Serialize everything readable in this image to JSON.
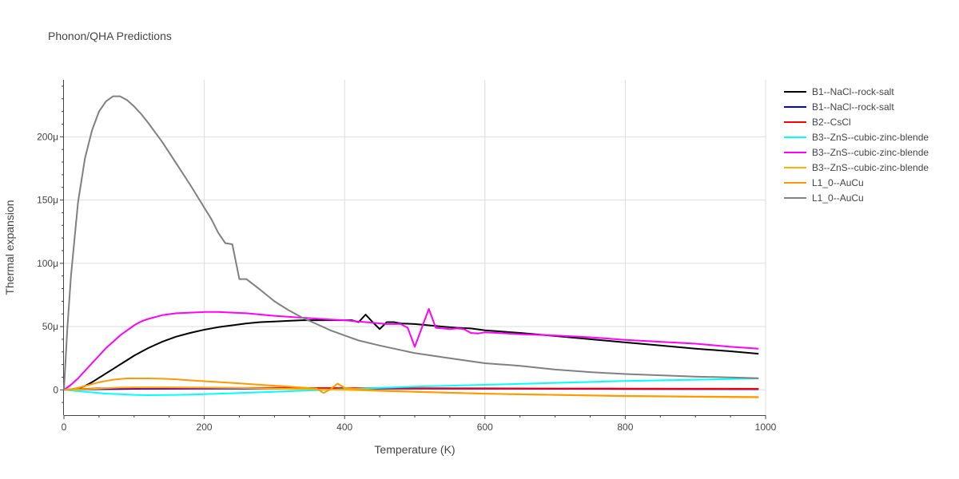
{
  "chart_data": {
    "type": "line",
    "title": "Phonon/QHA Predictions",
    "xlabel": "Temperature (K)",
    "ylabel": "Thermal expansion",
    "xlim": [
      0,
      1000
    ],
    "ylim": [
      -20,
      245
    ],
    "x_ticks": [
      {
        "value": 0,
        "label": "0"
      },
      {
        "value": 200,
        "label": "200"
      },
      {
        "value": 400,
        "label": "400"
      },
      {
        "value": 600,
        "label": "600"
      },
      {
        "value": 800,
        "label": "800"
      },
      {
        "value": 1000,
        "label": "1000"
      }
    ],
    "y_ticks": [
      {
        "value": 0,
        "label": "0"
      },
      {
        "value": 50,
        "label": "50μ"
      },
      {
        "value": 100,
        "label": "100μ"
      },
      {
        "value": 150,
        "label": "150μ"
      },
      {
        "value": 200,
        "label": "200μ"
      }
    ],
    "grid": true,
    "legend_position": "right",
    "series": [
      {
        "name": "B1--NaCl--rock-salt",
        "color": "#000000",
        "x": [
          0,
          10,
          20,
          30,
          40,
          50,
          60,
          70,
          80,
          90,
          100,
          110,
          120,
          140,
          160,
          180,
          200,
          220,
          240,
          260,
          280,
          300,
          320,
          340,
          360,
          380,
          400,
          410,
          420,
          430,
          440,
          450,
          460,
          470,
          480,
          500,
          520,
          540,
          560,
          580,
          600,
          650,
          700,
          750,
          800,
          850,
          900,
          950,
          990
        ],
        "y": [
          0,
          0.2,
          1,
          3,
          6,
          9.5,
          13,
          16.5,
          20,
          23.5,
          27,
          30,
          33,
          38,
          42,
          45,
          47.5,
          49.5,
          51,
          52.5,
          53.5,
          54,
          54.5,
          55,
          55,
          55,
          55,
          55,
          53.5,
          59.5,
          53.5,
          48,
          53.5,
          53.5,
          52.5,
          52,
          51,
          50,
          49,
          48.5,
          47,
          45,
          42.5,
          40,
          37.5,
          35,
          32.5,
          30.5,
          28.5
        ]
      },
      {
        "name": "B1--NaCl--rock-salt",
        "color": "#0000ff",
        "x": [
          0,
          20,
          50,
          100,
          200,
          300,
          400,
          500,
          600,
          700,
          800,
          900,
          990
        ],
        "y": [
          0,
          0.2,
          0.5,
          0.8,
          1,
          1,
          1,
          1,
          0.9,
          0.8,
          0.7,
          0.6,
          0.5
        ]
      },
      {
        "name": "B2--CsCl",
        "color": "#ff0000",
        "x": [
          0,
          20,
          50,
          100,
          200,
          300,
          400,
          500,
          600,
          700,
          800,
          900,
          990
        ],
        "y": [
          0,
          0.5,
          1.2,
          1.5,
          1.5,
          1.5,
          1.4,
          1.3,
          1.2,
          1.1,
          1,
          0.9,
          0.8
        ]
      },
      {
        "name": "B3--ZnS--cubic-zinc-blende",
        "color": "#00ffff",
        "x": [
          0,
          20,
          40,
          60,
          80,
          100,
          120,
          160,
          200,
          250,
          300,
          350,
          400,
          450,
          500,
          600,
          700,
          800,
          900,
          990
        ],
        "y": [
          0,
          -1,
          -2,
          -3,
          -3.5,
          -4,
          -4.2,
          -4,
          -3.5,
          -2.5,
          -1.5,
          -0.5,
          0.5,
          1.5,
          2.5,
          4,
          5.5,
          7,
          8,
          9
        ]
      },
      {
        "name": "B3--ZnS--cubic-zinc-blende",
        "color": "#ff00ff",
        "x": [
          0,
          10,
          20,
          30,
          40,
          50,
          60,
          70,
          80,
          90,
          100,
          110,
          120,
          140,
          160,
          180,
          200,
          220,
          240,
          260,
          280,
          300,
          340,
          380,
          400,
          420,
          440,
          460,
          480,
          490,
          500,
          520,
          530,
          540,
          550,
          560,
          570,
          580,
          590,
          600,
          650,
          700,
          750,
          800,
          850,
          900,
          950,
          990
        ],
        "y": [
          0,
          4,
          9,
          15,
          21,
          27,
          33,
          38,
          43,
          47,
          51,
          54,
          56,
          59,
          60.5,
          61,
          61.5,
          61.5,
          61,
          60.5,
          59.5,
          58.5,
          57,
          55.5,
          55,
          54,
          53,
          52,
          52,
          49,
          34,
          64,
          49,
          48.5,
          48,
          48.5,
          48,
          45,
          44.5,
          45.5,
          44,
          43,
          41.5,
          39.5,
          38,
          36.5,
          34,
          32.5
        ]
      },
      {
        "name": "B3--ZnS--cubic-zinc-blende",
        "color": "#ffb000",
        "x": [
          0,
          20,
          50,
          80,
          100,
          150,
          200,
          250,
          300,
          350,
          400,
          450,
          500,
          600,
          700,
          800,
          900,
          990
        ],
        "y": [
          0,
          0.2,
          1,
          1.8,
          2,
          2,
          1.8,
          1.5,
          1,
          0.5,
          0,
          -0.8,
          -1.5,
          -3,
          -4,
          -5,
          -5.5,
          -6
        ]
      },
      {
        "name": "L1_0--AuCu",
        "color": "#ff9900",
        "x": [
          0,
          10,
          20,
          30,
          40,
          50,
          60,
          70,
          80,
          90,
          100,
          120,
          140,
          160,
          180,
          200,
          240,
          280,
          320,
          360,
          370,
          380,
          390,
          400,
          420,
          450,
          500,
          600,
          700,
          800,
          900,
          990
        ],
        "y": [
          0,
          0.5,
          1.5,
          3,
          4.5,
          6,
          7,
          8,
          8.5,
          9,
          9,
          9,
          8.8,
          8.3,
          7.5,
          6.8,
          5.5,
          4,
          2.5,
          1,
          -2.5,
          0.5,
          5,
          1.5,
          0.5,
          -0.5,
          -1.5,
          -3,
          -4,
          -4.8,
          -5.3,
          -5.6
        ]
      },
      {
        "name": "L1_0--AuCu",
        "color": "#808080",
        "x": [
          0,
          5,
          10,
          20,
          30,
          40,
          50,
          60,
          70,
          80,
          90,
          100,
          110,
          120,
          140,
          160,
          180,
          200,
          210,
          220,
          230,
          240,
          250,
          260,
          280,
          300,
          320,
          340,
          360,
          380,
          400,
          420,
          450,
          500,
          550,
          600,
          650,
          700,
          750,
          800,
          850,
          900,
          950,
          990
        ],
        "y": [
          0,
          50,
          90,
          148,
          183,
          205,
          220,
          228,
          232,
          232,
          229,
          224,
          218,
          211,
          196,
          179,
          162,
          144,
          135,
          124,
          116,
          115,
          87.5,
          87.5,
          79,
          70,
          63,
          57,
          52,
          47,
          43,
          39,
          35,
          29,
          25,
          21,
          19,
          16,
          14,
          12.5,
          11.5,
          10.5,
          9.8,
          9.2
        ]
      }
    ]
  }
}
